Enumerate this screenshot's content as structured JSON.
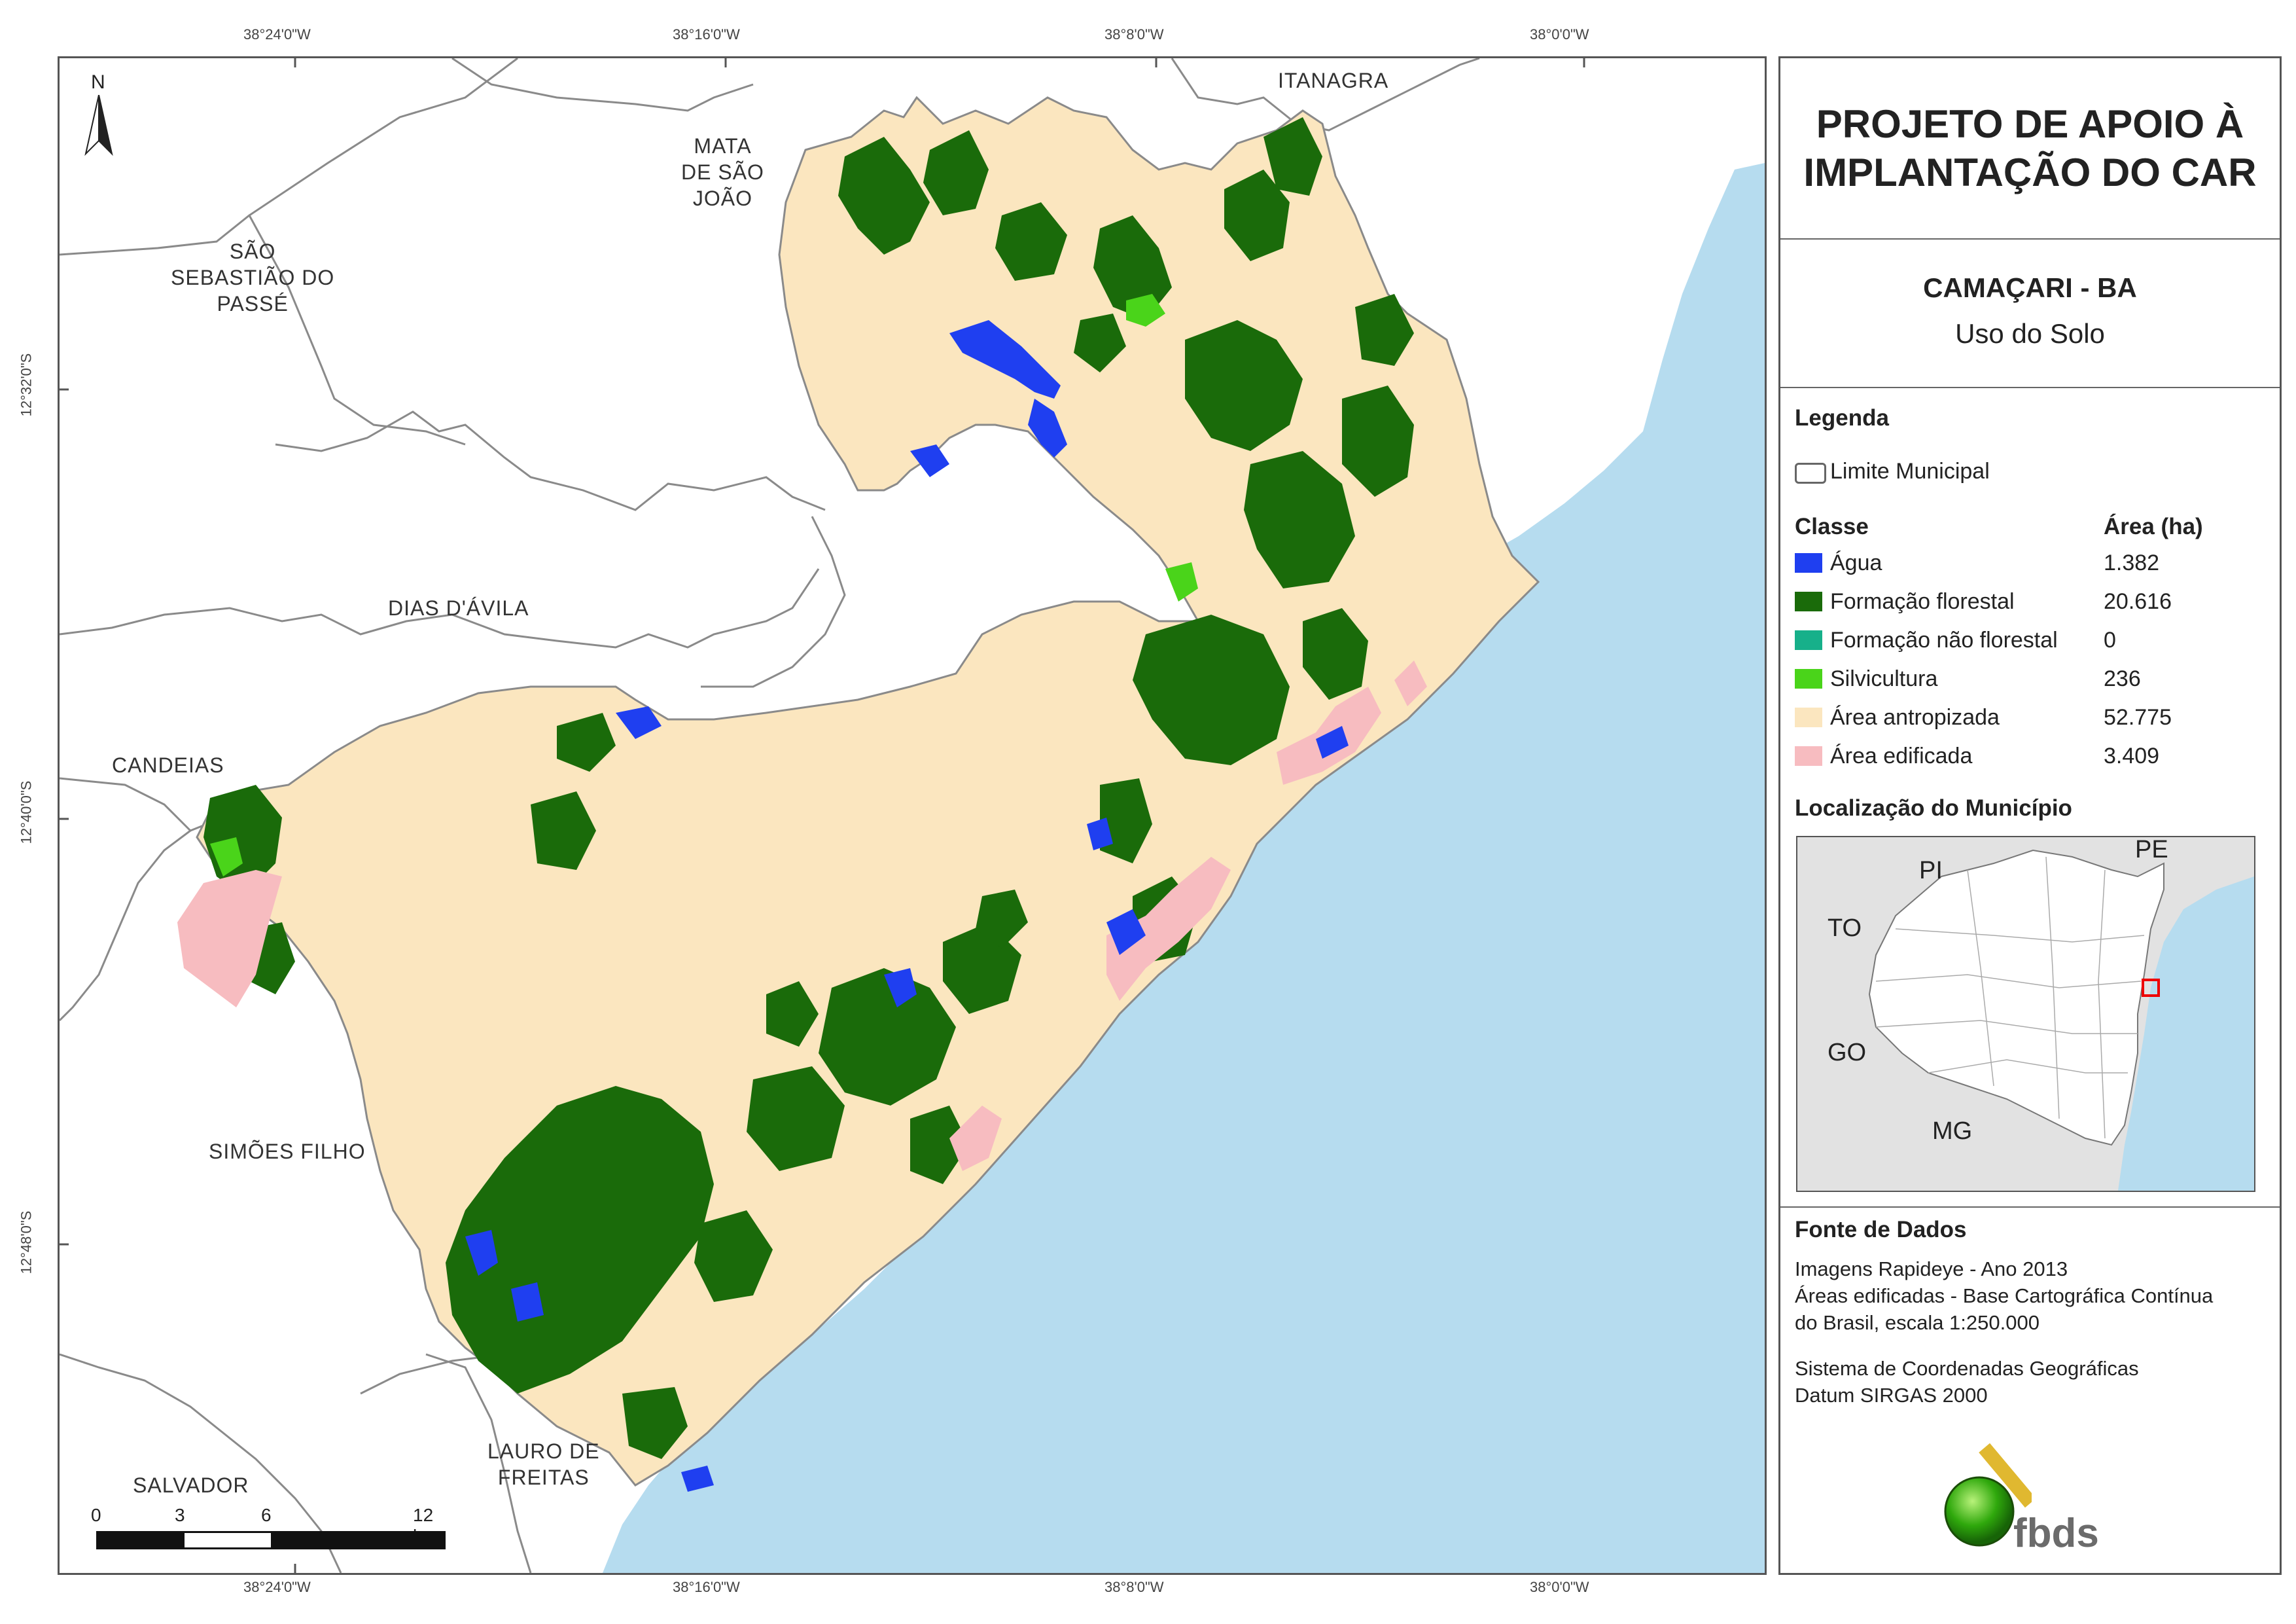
{
  "grid_labels": {
    "top": [
      "38°24'0\"W",
      "38°16'0\"W",
      "38°8'0\"W",
      "38°0'0\"W"
    ],
    "bottom": [
      "38°24'0\"W",
      "38°16'0\"W",
      "38°8'0\"W",
      "38°0'0\"W"
    ],
    "left": [
      "12°32'0\"S",
      "12°40'0\"S",
      "12°48'0\"S"
    ]
  },
  "map": {
    "north_label": "N",
    "municipalities": {
      "itanagra": "ITANAGRA",
      "mata_line1": "MATA",
      "mata_line2": "DE SÃO",
      "mata_line3": "JOÃO",
      "sao_seb_line1": "SÃO",
      "sao_seb_line2": "SEBASTIÃO DO",
      "sao_seb_line3": "PASSÉ",
      "dias_davila": "DIAS D'ÁVILA",
      "candeias": "CANDEIAS",
      "simoes_filho": "SIMÕES FILHO",
      "salvador": "SALVADOR",
      "lauro_line1": "LAURO DE",
      "lauro_line2": "FREITAS"
    },
    "scalebar": {
      "labels": [
        "0",
        "3",
        "6",
        "12 km"
      ]
    }
  },
  "panel": {
    "title": "PROJETO DE APOIO À\nIMPLANTAÇÃO DO CAR",
    "municipality": "CAMAÇARI - BA",
    "subtitle": "Uso do Solo",
    "legend_heading": "Legenda",
    "limit_label": "Limite Municipal",
    "class_header": "Classe",
    "area_header": "Área (ha)",
    "classes": [
      {
        "label": "Água",
        "area": "1.382",
        "color": "#1f3ff0"
      },
      {
        "label": "Formação florestal",
        "area": "20.616",
        "color": "#1a6b0a"
      },
      {
        "label": "Formação não florestal",
        "area": "0",
        "color": "#17b08a"
      },
      {
        "label": "Silvicultura",
        "area": "236",
        "color": "#4ad41a"
      },
      {
        "label": "Área antropizada",
        "area": "52.775",
        "color": "#fbe6bf"
      },
      {
        "label": "Área edificada",
        "area": "3.409",
        "color": "#f7bcc0"
      }
    ],
    "location_heading": "Localização do Município",
    "inset_labels": {
      "pi": "PI",
      "pe": "PE",
      "to": "TO",
      "go": "GO",
      "mg": "MG"
    },
    "source_heading": "Fonte de Dados",
    "source_line1": "Imagens Rapideye - Ano 2013",
    "source_line2": "Áreas edificadas - Base Cartográfica Contínua",
    "source_line3": "do Brasil, escala 1:250.000",
    "crs_line1": "Sistema de Coordenadas Geográficas",
    "crs_line2": "Datum SIRGAS 2000",
    "logo_text": "fbds"
  },
  "colors": {
    "ocean": "#b6dcef",
    "frame": "#555555",
    "boundary": "#888888"
  }
}
